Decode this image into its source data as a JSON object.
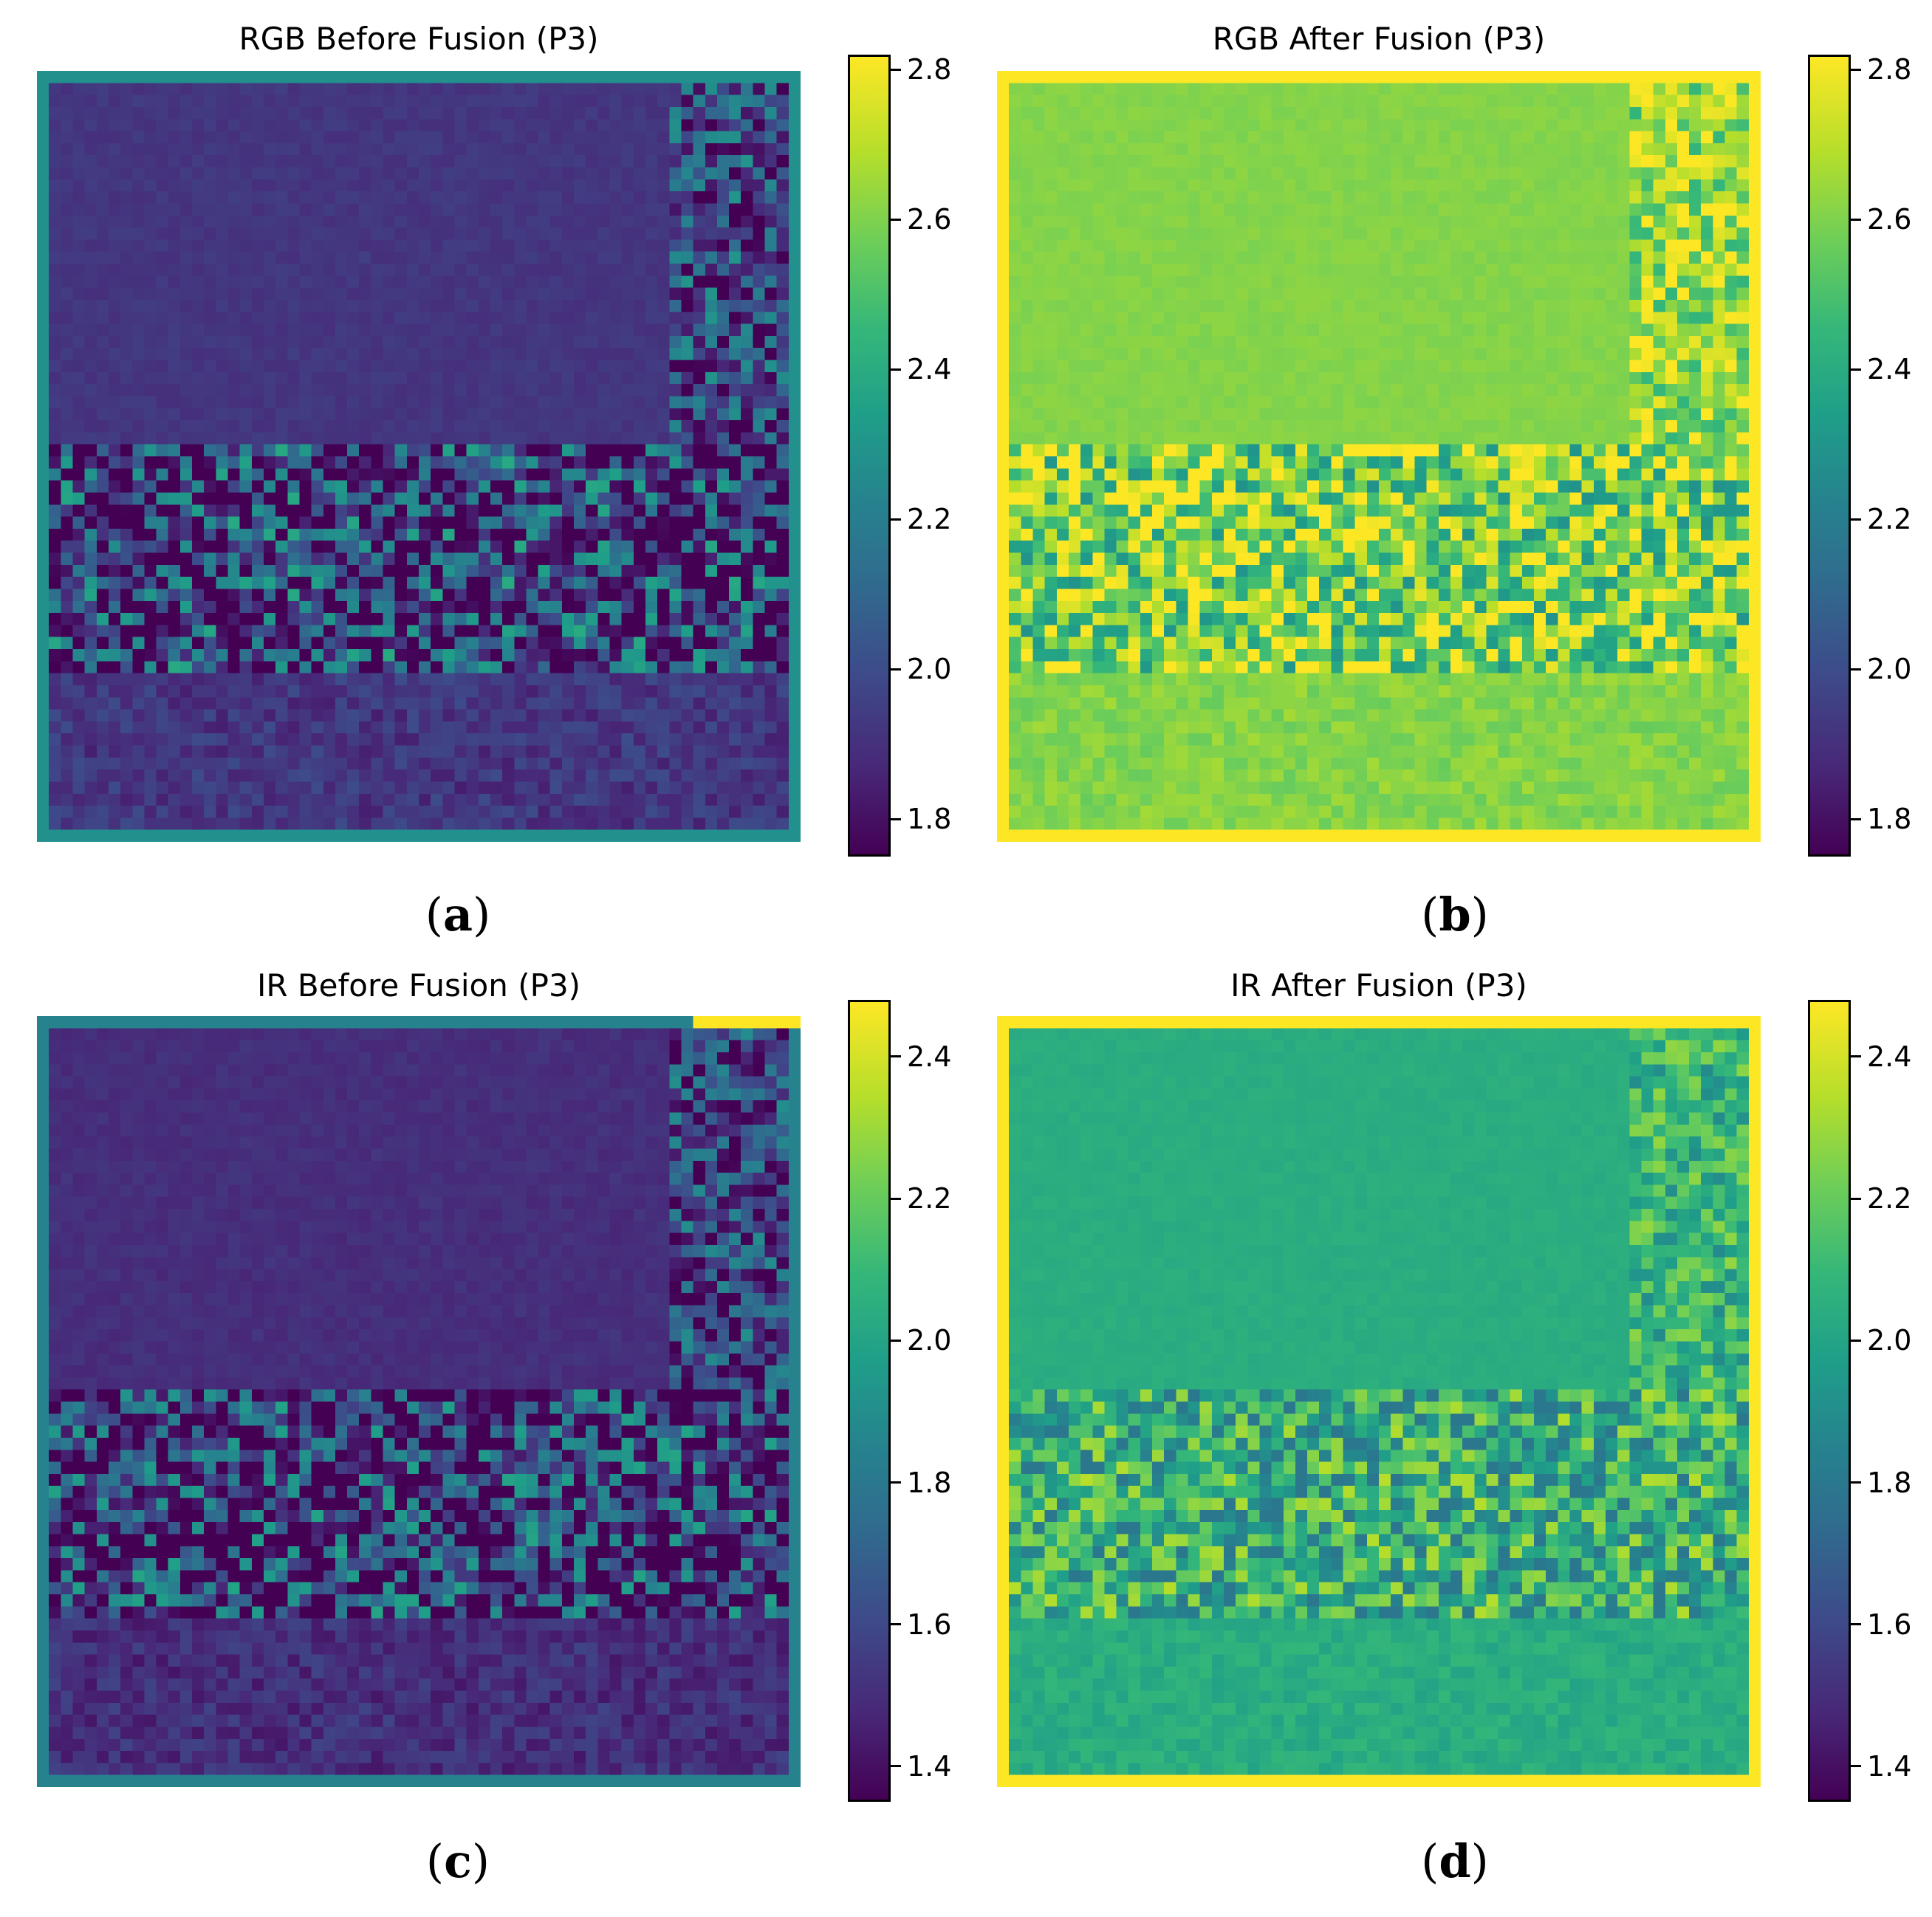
{
  "chart_data": [
    {
      "type": "heatmap",
      "title": "RGB Before Fusion (P3)",
      "sublabel": "a",
      "colormap": "viridis",
      "colorbar": {
        "vmin": 1.75,
        "vmax": 2.82,
        "ticks": [
          1.8,
          2.0,
          2.2,
          2.4,
          2.6,
          2.8
        ]
      },
      "typical_value": 1.92,
      "value_range": [
        1.75,
        2.82
      ]
    },
    {
      "type": "heatmap",
      "title": "RGB After Fusion (P3)",
      "sublabel": "b",
      "colormap": "viridis",
      "colorbar": {
        "vmin": 1.75,
        "vmax": 2.82,
        "ticks": [
          1.8,
          2.0,
          2.2,
          2.4,
          2.6,
          2.8
        ]
      },
      "typical_value": 2.62,
      "value_range": [
        2.1,
        2.82
      ]
    },
    {
      "type": "heatmap",
      "title": "IR Before Fusion (P3)",
      "sublabel": "c",
      "colormap": "viridis",
      "colorbar": {
        "vmin": 1.35,
        "vmax": 2.48,
        "ticks": [
          1.4,
          1.6,
          1.8,
          2.0,
          2.2,
          2.4
        ]
      },
      "typical_value": 1.5,
      "value_range": [
        1.35,
        2.48
      ]
    },
    {
      "type": "heatmap",
      "title": "IR After Fusion (P3)",
      "sublabel": "d",
      "colormap": "viridis",
      "colorbar": {
        "vmin": 1.35,
        "vmax": 2.48,
        "ticks": [
          1.4,
          1.6,
          1.8,
          2.0,
          2.2,
          2.4
        ]
      },
      "typical_value": 2.05,
      "value_range": [
        1.8,
        2.48
      ]
    }
  ]
}
